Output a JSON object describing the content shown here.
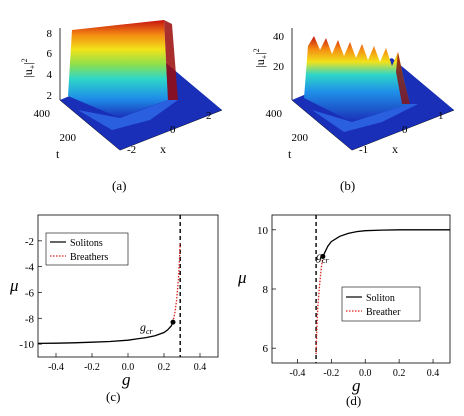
{
  "figure": {
    "panel_a": {
      "label": "(a)",
      "zlabel_base": "|u",
      "zlabel_sub": "+",
      "zlabel_sup": "2",
      "xlabel": "x",
      "tlabel": "t",
      "z_ticks": [
        "2",
        "4",
        "6",
        "8"
      ],
      "t_ticks": [
        "400",
        "200"
      ],
      "x_ticks": [
        "-2",
        "0",
        "2"
      ]
    },
    "panel_b": {
      "label": "(b)",
      "zlabel_base": "|u",
      "zlabel_sub": "+",
      "zlabel_sup": "2",
      "xlabel": "x",
      "tlabel": "t",
      "z_ticks": [
        "20",
        "40"
      ],
      "t_ticks": [
        "400",
        "200"
      ],
      "x_ticks": [
        "-1",
        "0",
        "1"
      ]
    },
    "panel_c": {
      "label": "(c)",
      "ylabel": "μ",
      "xlabel": "g",
      "x_ticks": [
        "-0.4",
        "-0.2",
        "0.0",
        "0.2",
        "0.4"
      ],
      "y_ticks": [
        "-10",
        "-8",
        "-6",
        "-4",
        "-2"
      ],
      "annotation_base": "g",
      "annotation_sub": "cr",
      "legend": [
        "Solitons",
        "Breathers"
      ]
    },
    "panel_d": {
      "label": "(d)",
      "ylabel": "μ",
      "xlabel": "g",
      "x_ticks": [
        "-0.4",
        "-0.2",
        "0.0",
        "0.2",
        "0.4"
      ],
      "y_ticks": [
        "6",
        "8",
        "10"
      ],
      "annotation_base": "g",
      "annotation_sub": "cr",
      "legend": [
        "Soliton",
        "Breather"
      ]
    }
  },
  "colors": {
    "soliton": "#000000",
    "breather": "#e0201b",
    "surface_base": "#1a2fb8"
  },
  "chart_data": [
    {
      "type": "line",
      "panel": "(c)",
      "xlabel": "g",
      "ylabel": "μ",
      "xlim": [
        -0.5,
        0.5
      ],
      "ylim": [
        -11,
        0
      ],
      "critical_g": 0.29,
      "series": [
        {
          "name": "Solitons",
          "style": "solid",
          "x": [
            -0.5,
            -0.4,
            -0.3,
            -0.2,
            -0.1,
            0.0,
            0.05,
            0.1,
            0.15,
            0.2,
            0.22,
            0.24,
            0.25
          ],
          "y": [
            -9.95,
            -9.93,
            -9.9,
            -9.85,
            -9.8,
            -9.7,
            -9.6,
            -9.5,
            -9.35,
            -9.1,
            -8.9,
            -8.6,
            -8.3
          ]
        },
        {
          "name": "Breathers",
          "style": "dotted",
          "x": [
            0.25,
            0.26,
            0.27,
            0.28,
            0.285,
            0.29
          ],
          "y": [
            -8.3,
            -7.6,
            -6.6,
            -5.0,
            -3.8,
            -2.2
          ]
        }
      ]
    },
    {
      "type": "line",
      "panel": "(d)",
      "xlabel": "g",
      "ylabel": "μ",
      "xlim": [
        -0.55,
        0.5
      ],
      "ylim": [
        5.5,
        10.5
      ],
      "critical_g": -0.29,
      "series": [
        {
          "name": "Soliton",
          "style": "solid",
          "x": [
            -0.25,
            -0.22,
            -0.2,
            -0.15,
            -0.1,
            -0.05,
            0.0,
            0.1,
            0.2,
            0.3,
            0.4,
            0.5
          ],
          "y": [
            9.1,
            9.45,
            9.6,
            9.78,
            9.88,
            9.94,
            9.97,
            9.99,
            10.0,
            10.0,
            10.0,
            10.0
          ]
        },
        {
          "name": "Breather",
          "style": "dotted",
          "x": [
            -0.29,
            -0.285,
            -0.28,
            -0.27,
            -0.26,
            -0.25
          ],
          "y": [
            5.8,
            6.7,
            7.4,
            8.1,
            8.7,
            9.1
          ]
        }
      ]
    }
  ]
}
